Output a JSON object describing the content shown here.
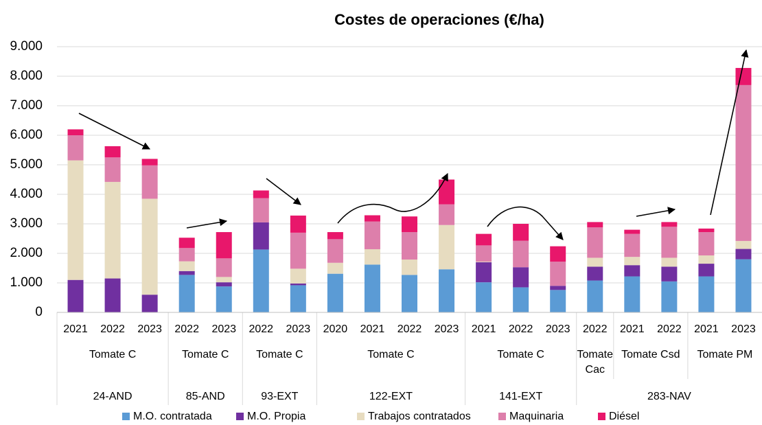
{
  "chart_data": {
    "type": "stacked_bar",
    "title": "Costes de operaciones (€/ha)",
    "groups": [
      {
        "name": "24-AND",
        "subgroups": [
          {
            "name": "Tomate C",
            "categories": [
              "2021",
              "2022",
              "2023"
            ]
          }
        ]
      },
      {
        "name": "85-AND",
        "subgroups": [
          {
            "name": "Tomate C",
            "categories": [
              "2022",
              "2023"
            ]
          }
        ]
      },
      {
        "name": "93-EXT",
        "subgroups": [
          {
            "name": "Tomate C",
            "categories": [
              "2022",
              "2023"
            ]
          }
        ]
      },
      {
        "name": "122-EXT",
        "subgroups": [
          {
            "name": "Tomate C",
            "categories": [
              "2020",
              "2021",
              "2022",
              "2023"
            ]
          }
        ]
      },
      {
        "name": "141-EXT",
        "subgroups": [
          {
            "name": "Tomate C",
            "categories": [
              "2021",
              "2022",
              "2023"
            ]
          }
        ]
      },
      {
        "name": "283-NAV",
        "subgroups": [
          {
            "name": "Tomate Cac",
            "categories": [
              "2022"
            ]
          },
          {
            "name": "Tomate Csd",
            "categories": [
              "2021",
              "2022"
            ]
          },
          {
            "name": "Tomate PM",
            "categories": [
              "2021",
              "2023"
            ]
          }
        ]
      }
    ],
    "series": [
      {
        "name": "M.O. contratada",
        "color": "#5b9bd5",
        "values": [
          0,
          0,
          0,
          1270,
          880,
          2130,
          920,
          1310,
          1620,
          1270,
          1460,
          1020,
          850,
          760,
          1080,
          1220,
          1050,
          1220,
          1800
        ]
      },
      {
        "name": "M.O. Propia",
        "color": "#7030a0",
        "values": [
          1100,
          1150,
          600,
          130,
          140,
          920,
          60,
          0,
          0,
          0,
          0,
          680,
          680,
          140,
          470,
          380,
          500,
          430,
          350
        ]
      },
      {
        "name": "Trabajos contratados",
        "color": "#e7dcc0",
        "values": [
          4050,
          3270,
          3250,
          330,
          180,
          0,
          500,
          370,
          520,
          520,
          1500,
          20,
          0,
          0,
          300,
          280,
          300,
          280,
          270
        ]
      },
      {
        "name": "Maquinaria",
        "color": "#dd7fab",
        "values": [
          850,
          830,
          1130,
          450,
          630,
          820,
          1220,
          800,
          940,
          930,
          700,
          550,
          900,
          820,
          1030,
          780,
          1050,
          790,
          5280
        ]
      },
      {
        "name": "Diésel",
        "color": "#e8176b",
        "values": [
          200,
          380,
          220,
          350,
          890,
          260,
          580,
          240,
          210,
          530,
          840,
          390,
          570,
          520,
          180,
          140,
          160,
          120,
          580
        ]
      }
    ],
    "ylim": [
      0,
      9000
    ],
    "yticks": [
      0,
      {
        "value": 1000,
        "label": "1.000"
      },
      {
        "value": 2000,
        "label": "2.000"
      },
      {
        "value": 3000,
        "label": "3.000"
      },
      {
        "value": 4000,
        "label": "4.000"
      },
      {
        "value": 5000,
        "label": "5.000"
      },
      {
        "value": 6000,
        "label": "6.000"
      },
      {
        "value": 7000,
        "label": "7.000"
      },
      {
        "value": 8000,
        "label": "8.000"
      },
      {
        "value": 9000,
        "label": "9.000"
      }
    ],
    "grid": true,
    "legend": "bottom"
  }
}
